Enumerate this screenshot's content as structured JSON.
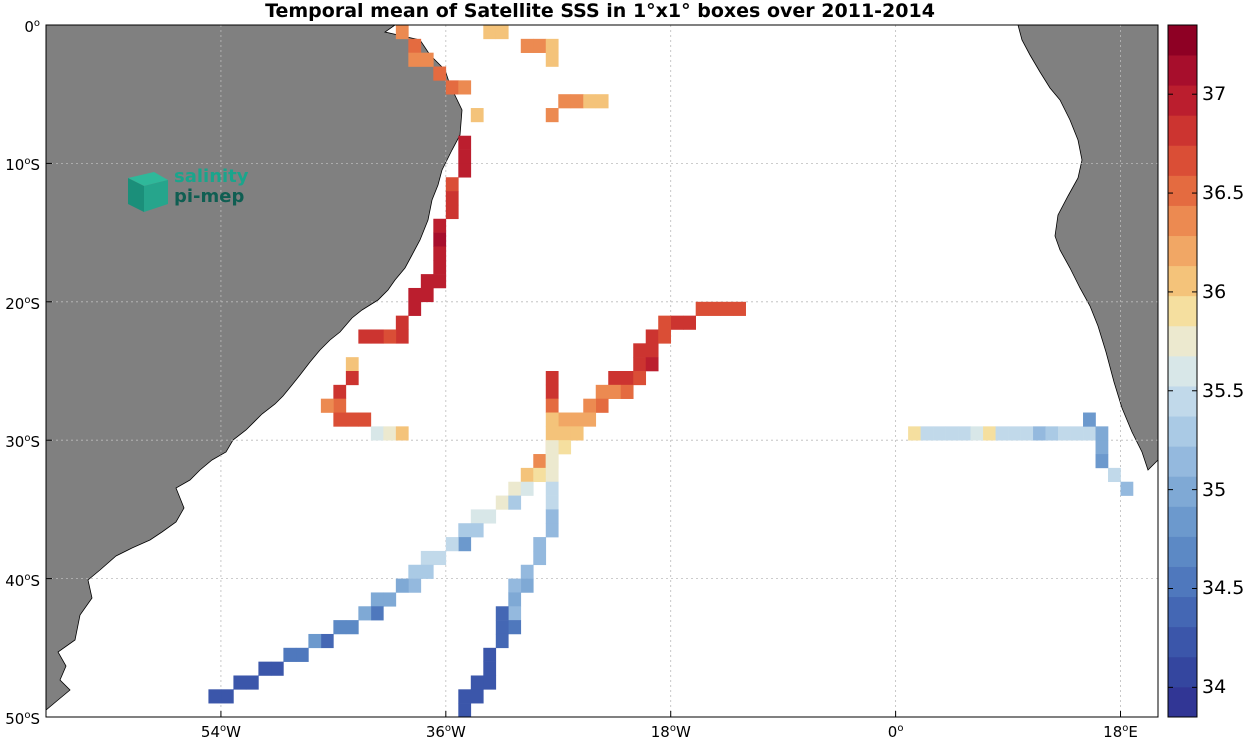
{
  "title": "Temporal mean of Satellite SSS in 1°x1° boxes over 2011-2014",
  "logo": {
    "line1": "salinity",
    "line2": "pi-mep"
  },
  "x_ticks": [
    {
      "value": -54,
      "text": "54",
      "dir": "W"
    },
    {
      "value": -36,
      "text": "36",
      "dir": "W"
    },
    {
      "value": -18,
      "text": "18",
      "dir": "W"
    },
    {
      "value": 0,
      "text": "0",
      "dir": ""
    },
    {
      "value": 18,
      "text": "18",
      "dir": "E"
    }
  ],
  "y_ticks": [
    {
      "value": 0,
      "text": "0",
      "dir": ""
    },
    {
      "value": -10,
      "text": "10",
      "dir": "S"
    },
    {
      "value": -20,
      "text": "20",
      "dir": "S"
    },
    {
      "value": -30,
      "text": "30",
      "dir": "S"
    },
    {
      "value": -40,
      "text": "40",
      "dir": "S"
    },
    {
      "value": -50,
      "text": "50",
      "dir": "S"
    }
  ],
  "colorbar": {
    "min": 33.85,
    "max": 37.35,
    "tick_values": [
      34,
      34.5,
      35,
      35.5,
      36,
      36.5,
      37
    ],
    "tick_labels": [
      "34",
      "34.5",
      "35",
      "35.5",
      "36",
      "36.5",
      "37"
    ],
    "colors": [
      "#313695",
      "#34469f",
      "#3b56aa",
      "#4467b4",
      "#4f78bd",
      "#5c89c5",
      "#6c99cd",
      "#7fa9d5",
      "#94b9de",
      "#aacae5",
      "#c1d9ea",
      "#d8e7e8",
      "#ece9cf",
      "#f5df9f",
      "#f4c37a",
      "#f1a765",
      "#ec8a51",
      "#e46b40",
      "#da4e36",
      "#cc3430",
      "#bb1e2e",
      "#a70e2c",
      "#8e0024"
    ]
  },
  "chart_data": {
    "type": "heatmap",
    "title": "Temporal mean of Satellite SSS in 1°x1° boxes over 2011-2014",
    "variable": "Satellite SSS",
    "lon_range": [
      -68,
      21
    ],
    "lat_range": [
      -50,
      0
    ],
    "cell_size_deg": 1,
    "cells": [
      [
        -40,
        0,
        36.3
      ],
      [
        -39,
        -1,
        36.5
      ],
      [
        -39,
        -2,
        36.3
      ],
      [
        -38,
        -2,
        36.3
      ],
      [
        -37,
        -3,
        36.5
      ],
      [
        -36,
        -4,
        36.5
      ],
      [
        -35,
        -4,
        36.4
      ],
      [
        -33,
        0,
        36.0
      ],
      [
        -32,
        0,
        36.0
      ],
      [
        -30,
        -1,
        36.3
      ],
      [
        -29,
        -1,
        36.3
      ],
      [
        -28,
        -1,
        36.0
      ],
      [
        -28,
        -2,
        36.1
      ],
      [
        -28,
        -6,
        36.3
      ],
      [
        -27,
        -5,
        36.3
      ],
      [
        -26,
        -5,
        36.3
      ],
      [
        -25,
        -5,
        36.0
      ],
      [
        -24,
        -5,
        36.0
      ],
      [
        -34,
        -6,
        36.0
      ],
      [
        -35,
        -8,
        36.9
      ],
      [
        -35,
        -9,
        36.9
      ],
      [
        -35,
        -10,
        36.9
      ],
      [
        -36,
        -11,
        36.7
      ],
      [
        -36,
        -12,
        36.8
      ],
      [
        -36,
        -13,
        36.8
      ],
      [
        -37,
        -14,
        36.9
      ],
      [
        -37,
        -15,
        37.1
      ],
      [
        -37,
        -16,
        37.0
      ],
      [
        -37,
        -17,
        37.0
      ],
      [
        -37,
        -18,
        37.0
      ],
      [
        -38,
        -18,
        36.9
      ],
      [
        -38,
        -19,
        36.9
      ],
      [
        -39,
        -19,
        36.9
      ],
      [
        -39,
        -20,
        36.9
      ],
      [
        -40,
        -21,
        36.8
      ],
      [
        -40,
        -22,
        36.8
      ],
      [
        -41,
        -22,
        36.7
      ],
      [
        -42,
        -22,
        36.8
      ],
      [
        -43,
        -22,
        36.8
      ],
      [
        -44,
        -24,
        36.0
      ],
      [
        -44,
        -25,
        36.8
      ],
      [
        -45,
        -26,
        36.8
      ],
      [
        -45,
        -27,
        36.5
      ],
      [
        -46,
        -27,
        36.4
      ],
      [
        -45,
        -28,
        36.7
      ],
      [
        -44,
        -28,
        36.7
      ],
      [
        -43,
        -28,
        36.7
      ],
      [
        -42,
        -29,
        35.6
      ],
      [
        -41,
        -29,
        35.7
      ],
      [
        -40,
        -29,
        36.0
      ],
      [
        -16,
        -20,
        36.7
      ],
      [
        -15,
        -20,
        36.6
      ],
      [
        -14,
        -20,
        36.7
      ],
      [
        -13,
        -20,
        36.7
      ],
      [
        -17,
        -21,
        36.8
      ],
      [
        -18,
        -21,
        36.8
      ],
      [
        -19,
        -21,
        36.7
      ],
      [
        -20,
        -22,
        36.8
      ],
      [
        -19,
        -22,
        36.7
      ],
      [
        -21,
        -23,
        36.8
      ],
      [
        -20,
        -23,
        36.8
      ],
      [
        -21,
        -24,
        36.8
      ],
      [
        -20,
        -24,
        36.9
      ],
      [
        -22,
        -25,
        36.8
      ],
      [
        -23,
        -25,
        36.8
      ],
      [
        -21,
        -25,
        36.7
      ],
      [
        -24,
        -26,
        36.3
      ],
      [
        -23,
        -26,
        36.4
      ],
      [
        -22,
        -26,
        36.5
      ],
      [
        -24,
        -27,
        36.5
      ],
      [
        -25,
        -27,
        36.4
      ],
      [
        -26,
        -28,
        36.2
      ],
      [
        -25,
        -28,
        36.2
      ],
      [
        -27,
        -28,
        36.2
      ],
      [
        -27,
        -29,
        36.1
      ],
      [
        -26,
        -29,
        36.1
      ],
      [
        -28,
        -30,
        36.0
      ],
      [
        -27,
        -30,
        35.9
      ],
      [
        -29,
        -31,
        36.3
      ],
      [
        -28,
        -31,
        35.7
      ],
      [
        -30,
        -32,
        36.0
      ],
      [
        -29,
        -32,
        35.9
      ],
      [
        -31,
        -33,
        35.8
      ],
      [
        -30,
        -33,
        35.6
      ],
      [
        -32,
        -34,
        35.7
      ],
      [
        -31,
        -34,
        35.3
      ],
      [
        -33,
        -35,
        35.6
      ],
      [
        -34,
        -35,
        35.6
      ],
      [
        -34,
        -36,
        35.3
      ],
      [
        -35,
        -36,
        35.3
      ],
      [
        -35,
        -37,
        34.9
      ],
      [
        -36,
        -37,
        35.4
      ],
      [
        -37,
        -38,
        35.4
      ],
      [
        -38,
        -38,
        35.4
      ],
      [
        -38,
        -39,
        35.3
      ],
      [
        -39,
        -39,
        35.3
      ],
      [
        -39,
        -40,
        35.2
      ],
      [
        -40,
        -40,
        35.0
      ],
      [
        -41,
        -41,
        35.0
      ],
      [
        -42,
        -41,
        35.0
      ],
      [
        -42,
        -42,
        34.6
      ],
      [
        -43,
        -42,
        35.0
      ],
      [
        -44,
        -43,
        34.7
      ],
      [
        -45,
        -43,
        34.7
      ],
      [
        -46,
        -44,
        34.4
      ],
      [
        -47,
        -44,
        34.8
      ],
      [
        -48,
        -45,
        34.5
      ],
      [
        -49,
        -45,
        34.5
      ],
      [
        -50,
        -46,
        34.3
      ],
      [
        -51,
        -46,
        34.3
      ],
      [
        -52,
        -47,
        34.2
      ],
      [
        -53,
        -47,
        34.2
      ],
      [
        -54,
        -48,
        34.2
      ],
      [
        -55,
        -48,
        34.2
      ],
      [
        -28,
        -25,
        36.8
      ],
      [
        -28,
        -26,
        36.8
      ],
      [
        -28,
        -27,
        36.5
      ],
      [
        -28,
        -28,
        36.0
      ],
      [
        -28,
        -29,
        36.0
      ],
      [
        -28,
        -30,
        35.8
      ],
      [
        -28,
        -31,
        35.8
      ],
      [
        -28,
        -32,
        35.8
      ],
      [
        -28,
        -33,
        35.5
      ],
      [
        -28,
        -34,
        35.4
      ],
      [
        -28,
        -35,
        35.1
      ],
      [
        -28,
        -36,
        35.1
      ],
      [
        -29,
        -37,
        35.2
      ],
      [
        -29,
        -38,
        35.2
      ],
      [
        -30,
        -39,
        35.1
      ],
      [
        -30,
        -40,
        35.0
      ],
      [
        -31,
        -40,
        35.1
      ],
      [
        -31,
        -41,
        35.0
      ],
      [
        -31,
        -42,
        35.2
      ],
      [
        -32,
        -42,
        34.4
      ],
      [
        -31,
        -43,
        34.6
      ],
      [
        -32,
        -43,
        34.4
      ],
      [
        -32,
        -44,
        34.4
      ],
      [
        -33,
        -45,
        34.3
      ],
      [
        -33,
        -46,
        34.3
      ],
      [
        -34,
        -47,
        34.3
      ],
      [
        -33,
        -47,
        34.3
      ],
      [
        -34,
        -48,
        34.2
      ],
      [
        -35,
        -48,
        34.2
      ],
      [
        -35,
        -49,
        34.2
      ],
      [
        1,
        -29,
        35.9
      ],
      [
        2,
        -29,
        35.5
      ],
      [
        3,
        -29,
        35.5
      ],
      [
        4,
        -29,
        35.5
      ],
      [
        5,
        -29,
        35.5
      ],
      [
        6,
        -29,
        35.6
      ],
      [
        7,
        -29,
        35.9
      ],
      [
        8,
        -29,
        35.5
      ],
      [
        9,
        -29,
        35.4
      ],
      [
        10,
        -29,
        35.5
      ],
      [
        11,
        -29,
        35.2
      ],
      [
        12,
        -29,
        35.3
      ],
      [
        13,
        -29,
        35.4
      ],
      [
        14,
        -29,
        35.4
      ],
      [
        15,
        -29,
        35.4
      ],
      [
        16,
        -29,
        35.0
      ],
      [
        15,
        -28,
        34.9
      ],
      [
        16,
        -30,
        35.0
      ],
      [
        16,
        -31,
        34.9
      ],
      [
        17,
        -32,
        35.4
      ],
      [
        18,
        -33,
        35.1
      ]
    ]
  }
}
